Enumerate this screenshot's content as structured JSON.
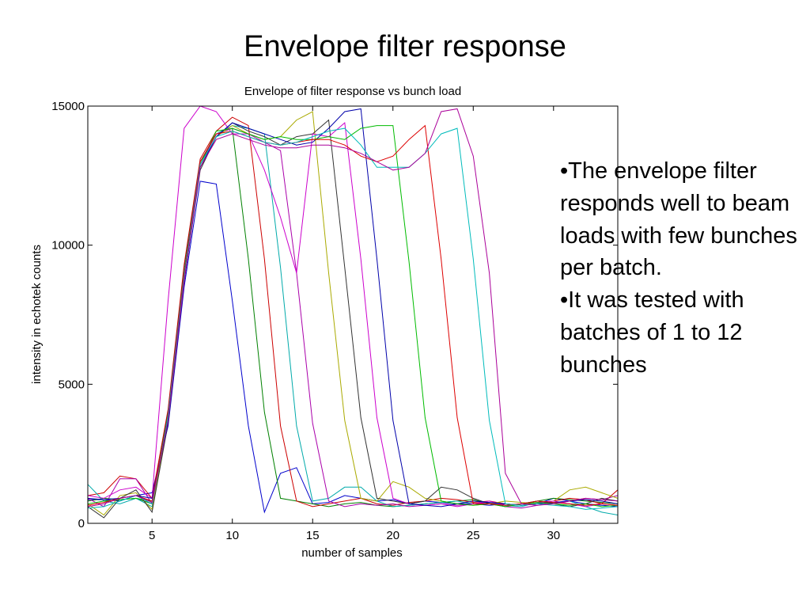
{
  "slide": {
    "title": "Envelope filter response",
    "bullets": [
      "•The envelope filter responds well to beam loads with few bunches per batch.",
      "•It was tested with batches of 1 to 12 bunches"
    ]
  },
  "chart_data": {
    "type": "line",
    "title": "Envelope of filter response vs bunch load",
    "xlabel": "number of samples",
    "ylabel": "intensity in echotek counts",
    "xlim": [
      1,
      34
    ],
    "ylim": [
      0,
      15000
    ],
    "xticks": [
      5,
      10,
      15,
      20,
      25,
      30
    ],
    "yticks": [
      0,
      5000,
      10000,
      15000
    ],
    "grid": false,
    "legend": "none",
    "x": [
      1,
      2,
      3,
      4,
      5,
      6,
      7,
      8,
      9,
      10,
      11,
      12,
      13,
      14,
      15,
      16,
      17,
      18,
      19,
      20,
      21,
      22,
      23,
      24,
      25,
      26,
      27,
      28,
      29,
      30,
      31,
      32,
      33,
      34
    ],
    "series": [
      {
        "color": "#0000cc",
        "values": [
          850,
          850,
          800,
          1000,
          1100,
          3500,
          8500,
          12300,
          12200,
          8000,
          3500,
          400,
          1800,
          2000,
          700,
          750,
          1000,
          900,
          800,
          850,
          700,
          800,
          750,
          700,
          700,
          650,
          700,
          650,
          700,
          900,
          800,
          700,
          650,
          600
        ]
      },
      {
        "color": "#008000",
        "values": [
          800,
          900,
          850,
          900,
          700,
          4000,
          9200,
          13000,
          14000,
          14200,
          9500,
          4000,
          900,
          800,
          700,
          600,
          700,
          750,
          650,
          600,
          650,
          700,
          750,
          800,
          850,
          700,
          650,
          700,
          800,
          900,
          850,
          800,
          750,
          700
        ]
      },
      {
        "color": "#cc0000",
        "values": [
          1000,
          1100,
          1700,
          1600,
          900,
          4100,
          9300,
          13100,
          14100,
          14600,
          14300,
          9500,
          3500,
          800,
          600,
          700,
          800,
          900,
          700,
          650,
          750,
          800,
          900,
          850,
          750,
          800,
          700,
          650,
          750,
          800,
          900,
          850,
          700,
          1200
        ]
      },
      {
        "color": "#00aaaa",
        "values": [
          1400,
          800,
          700,
          900,
          600,
          3900,
          9000,
          13000,
          14000,
          14300,
          14200,
          14000,
          9200,
          3500,
          800,
          900,
          1300,
          1300,
          800,
          600,
          650,
          700,
          750,
          800,
          700,
          750,
          650,
          600,
          750,
          700,
          800,
          600,
          400,
          300
        ]
      },
      {
        "color": "#aa00aa",
        "values": [
          900,
          600,
          1600,
          1600,
          700,
          3800,
          8900,
          12900,
          14000,
          14200,
          14000,
          13700,
          13400,
          9000,
          3600,
          800,
          600,
          700,
          650,
          700,
          600,
          650,
          700,
          650,
          700,
          750,
          600,
          550,
          650,
          750,
          800,
          900,
          850,
          1000
        ]
      },
      {
        "color": "#aaaa00",
        "values": [
          700,
          300,
          1000,
          1100,
          500,
          3700,
          8800,
          12800,
          13900,
          14300,
          14000,
          13800,
          13900,
          14500,
          14800,
          9000,
          3700,
          900,
          800,
          1500,
          1300,
          900,
          800,
          700,
          650,
          700,
          800,
          750,
          700,
          800,
          1200,
          1300,
          1100,
          900
        ]
      },
      {
        "color": "#333333",
        "values": [
          600,
          200,
          900,
          1200,
          400,
          3600,
          8700,
          12700,
          13900,
          14400,
          14100,
          13900,
          13600,
          13900,
          14000,
          14500,
          9200,
          3800,
          900,
          800,
          700,
          800,
          1300,
          1200,
          900,
          700,
          600,
          700,
          800,
          700,
          600,
          700,
          900,
          800
        ]
      },
      {
        "color": "#cc00cc",
        "values": [
          1000,
          900,
          1200,
          1300,
          900,
          8000,
          14200,
          15000,
          14800,
          14000,
          14000,
          12700,
          11000,
          9000,
          14000,
          13900,
          14400,
          9500,
          3800,
          900,
          700,
          650,
          700,
          600,
          700,
          800,
          650,
          700,
          750,
          800,
          700,
          600,
          700,
          650
        ]
      },
      {
        "color": "#0000aa",
        "values": [
          900,
          850,
          900,
          1000,
          900,
          3600,
          8700,
          12800,
          13900,
          14400,
          14200,
          14000,
          13800,
          13600,
          13700,
          14200,
          14800,
          14900,
          9500,
          3700,
          700,
          650,
          600,
          700,
          800,
          750,
          700,
          650,
          700,
          750,
          800,
          850,
          800,
          700
        ]
      },
      {
        "color": "#00bb00",
        "values": [
          700,
          800,
          850,
          900,
          800,
          3700,
          8800,
          12900,
          14100,
          14200,
          14000,
          13800,
          13900,
          13800,
          13800,
          13900,
          13800,
          14200,
          14300,
          14300,
          9400,
          3800,
          800,
          700,
          650,
          700,
          600,
          700,
          750,
          700,
          650,
          700,
          600,
          650
        ]
      },
      {
        "color": "#dd0000",
        "values": [
          650,
          750,
          900,
          1000,
          800,
          3800,
          8900,
          13000,
          14000,
          14100,
          13900,
          13700,
          13600,
          13700,
          13800,
          13800,
          13600,
          13200,
          13000,
          13200,
          13800,
          14300,
          9500,
          3800,
          700,
          700,
          650,
          700,
          800,
          750,
          700,
          650,
          700,
          650
        ]
      },
      {
        "color": "#00bbbb",
        "values": [
          550,
          600,
          800,
          1000,
          700,
          3800,
          8800,
          12900,
          13900,
          14100,
          13900,
          13700,
          13600,
          13700,
          13900,
          14100,
          14200,
          13600,
          12800,
          12800,
          12800,
          13300,
          14000,
          14200,
          9500,
          3700,
          700,
          650,
          700,
          650,
          600,
          500,
          550,
          600
        ]
      },
      {
        "color": "#aa0099",
        "values": [
          600,
          700,
          900,
          1000,
          750,
          3700,
          8700,
          12800,
          13800,
          14000,
          13800,
          13600,
          13500,
          13500,
          13600,
          13600,
          13500,
          13300,
          13000,
          12700,
          12800,
          13300,
          14800,
          14900,
          13200,
          9000,
          1800,
          700,
          650,
          700,
          800,
          900,
          850,
          800
        ]
      }
    ]
  }
}
